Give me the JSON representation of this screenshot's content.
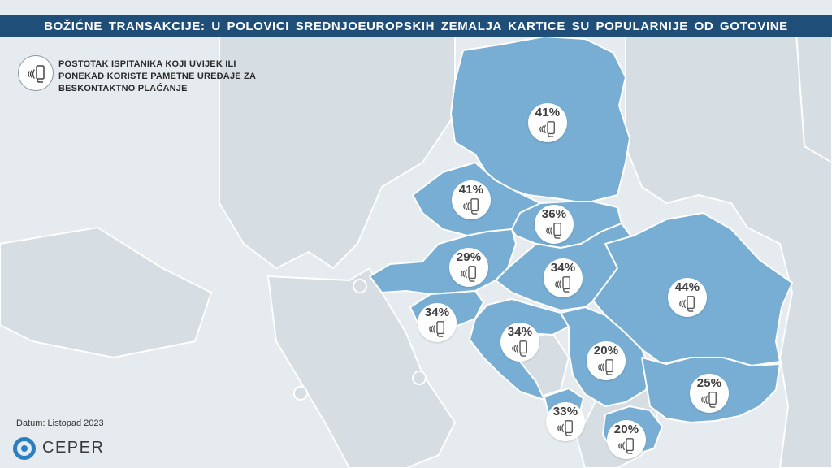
{
  "title": "BOŽIĆNE TRANSAKCIJE: U POLOVICI SREDNJOEUROPSKIH ZEMALJA KARTICE SU POPULARNIJE OD GOTOVINE",
  "legend": {
    "icon": "contactless-phone-icon",
    "text": "POSTOTAK ISPITANIKA KOJI UVIJEK ILI PONEKAD KORISTE PAMETNE UREĐAJE ZA BESKONTAKTNO PLAĆANJE"
  },
  "markers": [
    {
      "value": "41%"
    },
    {
      "value": "41%"
    },
    {
      "value": "36%"
    },
    {
      "value": "29%"
    },
    {
      "value": "34%"
    },
    {
      "value": "44%"
    },
    {
      "value": "34%"
    },
    {
      "value": "34%"
    },
    {
      "value": "20%"
    },
    {
      "value": "25%"
    },
    {
      "value": "33%"
    },
    {
      "value": "20%"
    }
  ],
  "footer": {
    "date": "Datum: Listopad 2023",
    "brand": "CEPER"
  },
  "colors": {
    "highlight": "#78aed4",
    "land": "#d6dde3",
    "sea": "#e6ebef",
    "title_bar": "#1f4e79"
  }
}
